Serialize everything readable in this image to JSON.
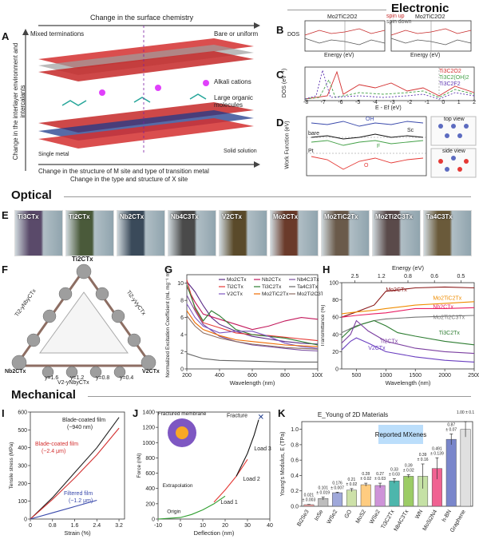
{
  "sections": {
    "electronic": "Electronic",
    "optical": "Optical",
    "mechanical": "Mechanical"
  },
  "panel_letters": [
    "A",
    "B",
    "C",
    "D",
    "E",
    "F",
    "G",
    "H",
    "I",
    "J",
    "K"
  ],
  "panelA": {
    "top_arrow": "Change in the surface chemistry",
    "mixed": "Mixed terminations",
    "bare": "Bare or uniform",
    "alkali": "Alkali cations",
    "organic": "Large organic molecules",
    "solid": "Solid solution",
    "single_metal": "Single metal",
    "left_axis": "Change in the interlayer environment and intercalants",
    "bottom1": "Change in the structure of M site and type of transition metal",
    "bottom2": "Change in the type and structure of X site"
  },
  "panelB": {
    "ylabel": "DOS",
    "xlabel": "Energy (eV)",
    "left_title": "Mo2TiC2O2",
    "right_title": "Mo2TiC2O2",
    "legend": [
      "spin up",
      "spin down"
    ]
  },
  "panelC": {
    "ylabel": "DOS (eV⁻¹)",
    "xlabel": "E - Ef (eV)",
    "legend": [
      "Ti3C2O2",
      "Ti3C2(OH)2",
      "Ti3C2F2"
    ],
    "ticks": [
      "-8",
      "-7",
      "-6",
      "-5",
      "-4",
      "-3",
      "-2",
      "-1",
      "0",
      "1",
      "2"
    ]
  },
  "panelD": {
    "ylabel": "Work Function (eV)",
    "labels": [
      "OH",
      "Sc",
      "bare",
      "F",
      "O",
      "Pt"
    ],
    "top_view": "top view",
    "side_view": "side view"
  },
  "panelE": {
    "vials": [
      "Ti3CTx",
      "Ti2CTx",
      "Nb2CTx",
      "Nb4C3Tx",
      "V2CTx",
      "Mo2CTx",
      "Mo2TiC2Tx",
      "Mo2Ti2C3Tx",
      "Ta4C3Tx"
    ],
    "colors": [
      "#5a4a6a",
      "#4a5a3a",
      "#3a4a5a",
      "#4a4a4a",
      "#5a4a2a",
      "#6a3a2a",
      "#6a5a4a",
      "#5a4a4a",
      "#6a5a3a"
    ]
  },
  "panelF": {
    "top": "Ti2CTx",
    "left_edge": "Ti2-yNbyCTx",
    "right_edge": "Ti2-yVyCTx",
    "bottom_edge": "V2-yNbyCTx",
    "bl": "Nb2CTx",
    "br": "V2CTx",
    "ticks": [
      "y=0.4",
      "y=0.8",
      "y=1.2",
      "y=1.6"
    ]
  },
  "chart_data": [
    {
      "type": "line",
      "title": "",
      "xlabel": "Wavelength (nm)",
      "ylabel": "Normalized Excitation Coefficient (mL mg⁻¹ m⁻¹)",
      "xlim": [
        200,
        1000
      ],
      "ylim": [
        0,
        11
      ],
      "xticks": [
        200,
        400,
        600,
        800,
        1000
      ],
      "yticks": [
        0,
        2,
        4,
        6,
        8,
        10
      ],
      "series": [
        {
          "name": "Mo2CTx",
          "color": "#5b2a86",
          "x": [
            200,
            250,
            300,
            350,
            400,
            500,
            600,
            700,
            800,
            900,
            1000
          ],
          "y": [
            10.2,
            9.0,
            7.4,
            6.0,
            5.2,
            4.4,
            3.8,
            3.5,
            3.2,
            3.0,
            2.9
          ]
        },
        {
          "name": "Nb2CTx",
          "color": "#c2185b",
          "x": [
            200,
            250,
            300,
            400,
            500,
            600,
            700,
            800,
            900,
            1000
          ],
          "y": [
            9.6,
            7.8,
            6.4,
            5.8,
            5.2,
            4.6,
            5.0,
            5.6,
            6.0,
            5.8
          ]
        },
        {
          "name": "Nb4C3Tx",
          "color": "#7b4fa0",
          "x": [
            200,
            250,
            300,
            400,
            500,
            600,
            700,
            800,
            900,
            1000
          ],
          "y": [
            8.6,
            6.8,
            5.2,
            3.8,
            3.2,
            2.8,
            2.6,
            2.4,
            2.2,
            2.1
          ]
        },
        {
          "name": "Ti2CTx",
          "color": "#e53935",
          "x": [
            200,
            250,
            300,
            400,
            500,
            600,
            700,
            800,
            900,
            1000
          ],
          "y": [
            10.4,
            7.0,
            5.4,
            4.8,
            4.2,
            4.0,
            3.9,
            3.7,
            3.5,
            3.3
          ]
        },
        {
          "name": "Ti3C2Tx",
          "color": "#2e7d32",
          "x": [
            200,
            250,
            300,
            350,
            400,
            500,
            600,
            700,
            800,
            900,
            1000
          ],
          "y": [
            9.8,
            7.2,
            5.6,
            6.8,
            6.2,
            4.6,
            4.0,
            3.8,
            3.6,
            3.2,
            2.8
          ]
        },
        {
          "name": "Ta4C3Tx",
          "color": "#666666",
          "x": [
            200,
            300,
            400,
            600,
            800,
            1000
          ],
          "y": [
            1.8,
            1.2,
            1.0,
            0.9,
            0.8,
            0.8
          ]
        },
        {
          "name": "V2CTx",
          "color": "#7e57c2",
          "x": [
            200,
            250,
            300,
            400,
            500,
            600,
            700,
            800,
            900,
            1000
          ],
          "y": [
            7.6,
            6.0,
            5.0,
            4.2,
            4.4,
            4.4,
            3.8,
            3.0,
            2.6,
            2.4
          ]
        },
        {
          "name": "Mo2TiC2Tx",
          "color": "#ef6c00",
          "x": [
            200,
            250,
            300,
            400,
            500,
            600,
            700,
            800,
            900,
            1000
          ],
          "y": [
            6.8,
            5.4,
            4.6,
            3.9,
            3.4,
            3.2,
            3.0,
            2.8,
            2.7,
            2.6
          ]
        },
        {
          "name": "Mo2Ti2C3Tx",
          "color": "#8d6e63",
          "x": [
            200,
            250,
            300,
            400,
            500,
            600,
            700,
            800,
            900,
            1000
          ],
          "y": [
            6.2,
            5.0,
            4.2,
            3.6,
            3.2,
            2.9,
            2.7,
            2.5,
            2.4,
            2.3
          ]
        }
      ]
    },
    {
      "type": "line",
      "title": "",
      "xlabel": "Wavelength (nm)",
      "ylabel": "Transmittance (%)",
      "x2label": "Energy (eV)",
      "xlim": [
        250,
        2500
      ],
      "ylim": [
        0,
        100
      ],
      "xticks": [
        500,
        1000,
        1500,
        2000,
        2500
      ],
      "yticks": [
        0,
        20,
        40,
        60,
        80,
        100
      ],
      "x2ticks": [
        "2.5",
        "1.2",
        "0.8",
        "0.6",
        "0.5"
      ],
      "series": [
        {
          "name": "Mo2CTx",
          "color": "#8b1a1a",
          "x": [
            250,
            500,
            800,
            1000,
            1500,
            2000,
            2500
          ],
          "y": [
            60,
            66,
            74,
            90,
            94,
            95,
            94
          ]
        },
        {
          "name": "Mo2TiC2Tx",
          "color": "#ef8c00",
          "x": [
            250,
            500,
            800,
            1000,
            1500,
            2000,
            2500
          ],
          "y": [
            64,
            66,
            68,
            70,
            74,
            76,
            78
          ]
        },
        {
          "name": "Nb2CTx",
          "color": "#e91e63",
          "x": [
            250,
            500,
            800,
            1000,
            1500,
            2000,
            2500
          ],
          "y": [
            60,
            62,
            64,
            65,
            70,
            70,
            71
          ]
        },
        {
          "name": "Mo2Ti2C3Tx",
          "color": "#777777",
          "x": [
            250,
            500,
            800,
            1000,
            1500,
            2000,
            2500
          ],
          "y": [
            42,
            50,
            56,
            58,
            60,
            61,
            62
          ]
        },
        {
          "name": "Ti3C2Tx",
          "color": "#2e7d32",
          "x": [
            250,
            400,
            600,
            800,
            1000,
            1200,
            1500,
            2000,
            2500
          ],
          "y": [
            36,
            46,
            52,
            56,
            50,
            42,
            38,
            32,
            28
          ]
        },
        {
          "name": "Ti2CTx",
          "color": "#7b3fa0",
          "x": [
            250,
            400,
            500,
            700,
            1000,
            1500,
            2000,
            2500
          ],
          "y": [
            30,
            40,
            56,
            44,
            32,
            24,
            20,
            18
          ]
        },
        {
          "name": "V2CTx",
          "color": "#6a3fc0",
          "x": [
            250,
            400,
            500,
            700,
            1000,
            1500,
            2000,
            2500
          ],
          "y": [
            22,
            32,
            36,
            30,
            20,
            14,
            10,
            8
          ]
        }
      ]
    },
    {
      "type": "line",
      "title": "",
      "xlabel": "Strain (%)",
      "ylabel": "Tensile stress (MPa)",
      "xlim": [
        0,
        3.4
      ],
      "ylim": [
        0,
        600
      ],
      "xticks": [
        0.0,
        0.8,
        1.6,
        2.4,
        3.2
      ],
      "yticks": [
        0,
        100,
        200,
        300,
        400,
        500,
        600
      ],
      "series": [
        {
          "name": "Blade-coated film (~940 nm)",
          "color": "#222222",
          "x": [
            0,
            0.8,
            1.6,
            2.4,
            3.2
          ],
          "y": [
            0,
            120,
            260,
            400,
            570
          ]
        },
        {
          "name": "Blade-coated film (~2.4 μm)",
          "color": "#d32f2f",
          "x": [
            0,
            0.8,
            1.6,
            2.4,
            3.2
          ],
          "y": [
            0,
            110,
            230,
            360,
            510
          ]
        },
        {
          "name": "Filtered film (~1.2 μm)",
          "color": "#3949ab",
          "x": [
            0,
            0.8,
            1.6,
            2.4
          ],
          "y": [
            0,
            35,
            70,
            105
          ]
        }
      ],
      "annotations": [
        "Blade-coated film",
        "(~940 nm)",
        "Blade-coated film",
        "(~2.4 μm)",
        "Filtered film",
        "(~1.2 μm)"
      ]
    },
    {
      "type": "line",
      "title": "",
      "xlabel": "Deflection (nm)",
      "ylabel": "Force (nN)",
      "xlim": [
        -10,
        40
      ],
      "ylim": [
        0,
        1400
      ],
      "xticks": [
        -10,
        0,
        10,
        20,
        30,
        40
      ],
      "yticks": [
        0,
        200,
        400,
        600,
        800,
        1000,
        1200,
        1400
      ],
      "series": [
        {
          "name": "Load 1",
          "color": "#2e9e2e",
          "x": [
            -10,
            0,
            5,
            10,
            15,
            20
          ],
          "y": [
            0,
            20,
            60,
            120,
            200,
            300
          ]
        },
        {
          "name": "Load 2",
          "color": "#e53935",
          "x": [
            15,
            20,
            25,
            30
          ],
          "y": [
            220,
            380,
            560,
            780
          ]
        },
        {
          "name": "Load 3",
          "color": "#111111",
          "x": [
            25,
            30,
            33,
            35
          ],
          "y": [
            560,
            860,
            1100,
            1300
          ]
        }
      ],
      "annotations": [
        "Fracture",
        "Load 3",
        "Load 2",
        "Load 1",
        "Origin",
        "Extrapolation",
        "Fractured membrane"
      ]
    },
    {
      "type": "bar",
      "title": "E_Young of 2D Materials",
      "xlabel": "",
      "ylabel": "Young's Modulus, E (TPa)",
      "ylim": [
        0,
        1.1
      ],
      "yticks": [
        0.0,
        0.2,
        0.4,
        0.6,
        0.8,
        1.0
      ],
      "categories": [
        "Bi2Se3",
        "InSe",
        "WSe2",
        "GO",
        "MoS2",
        "WSe2",
        "Ti3C2Tx",
        "Nb4C3Tx",
        "WN",
        "MoSi2N4",
        "h-BN",
        "Graphene"
      ],
      "values": [
        0.021,
        0.101,
        0.176,
        0.21,
        0.28,
        0.27,
        0.33,
        0.39,
        0.39,
        0.491,
        0.87,
        1.0
      ],
      "errors": [
        0.003,
        0.019,
        0.007,
        0.02,
        0.02,
        0.03,
        0.03,
        0.02,
        0.16,
        0.139,
        0.07,
        0.1
      ],
      "value_labels": [
        "0.021\n± 0.003",
        "0.101\n± 0.019",
        "0.176\n± 0.007",
        "0.21\n± 0.02",
        "0.28\n± 0.02",
        "0.27\n± 0.03",
        "0.33\n± 0.03",
        "0.39\n± 0.02",
        "0.39\n± 0.16",
        "0.491\n± 0.139",
        "0.87\n± 0.07",
        "1.00 ± 0.1"
      ],
      "colors": [
        "#f4a3a3",
        "#bdbdbd",
        "#9fa8da",
        "#cde1a8",
        "#ffcc80",
        "#ce93d8",
        "#4db6ac",
        "#9ccc65",
        "#c5e1a5",
        "#f06292",
        "#7986cb",
        "#e0e0e0"
      ],
      "annotation": "Reported MXenes"
    }
  ]
}
